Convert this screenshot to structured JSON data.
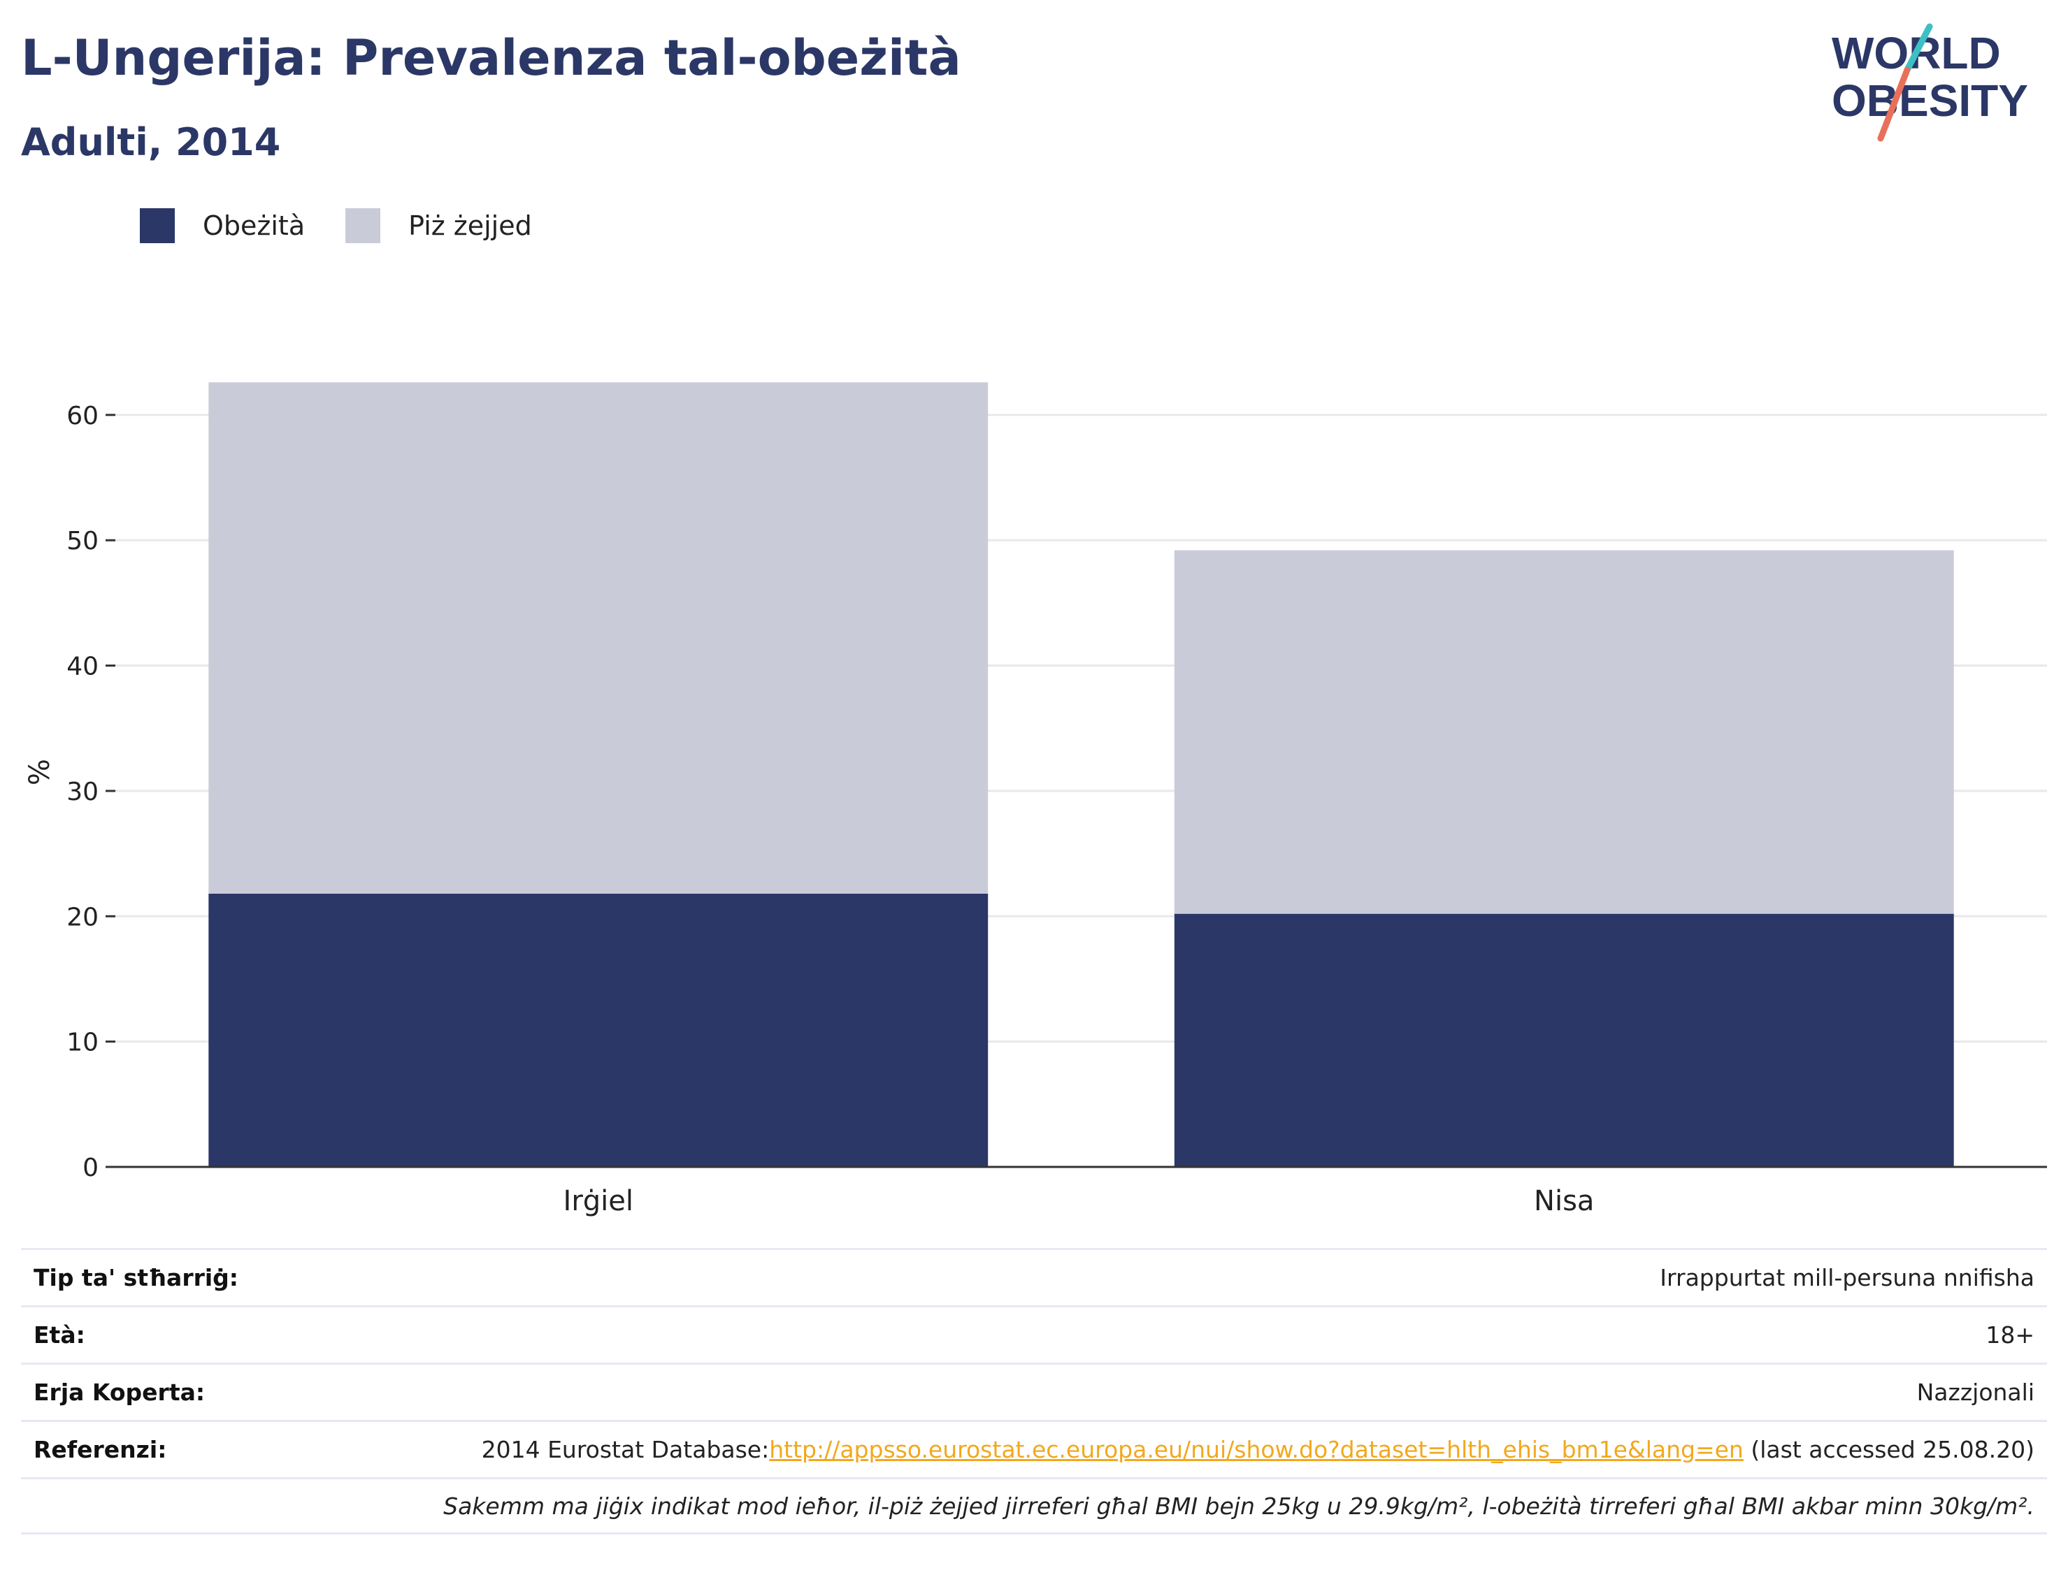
{
  "header": {
    "title": "L-Ungerija: Prevalenza tal-obeżità",
    "subtitle": "Adulti, 2014"
  },
  "logo": {
    "line1": "WORLD",
    "line2": "OBESITY",
    "colors": {
      "text": "#2b3766",
      "slash_top": "#3cc0c3",
      "slash_bottom": "#e8705a"
    }
  },
  "colors": {
    "obesity": "#2b3766",
    "overweight": "#c9ccd8",
    "gridline": "#e8e8ee",
    "axis": "#333333",
    "link": "#f2a81d"
  },
  "chart_data": {
    "type": "bar",
    "stacked": true,
    "categories": [
      "Irġiel",
      "Nisa"
    ],
    "series": [
      {
        "name": "Obeżità",
        "values": [
          21.8,
          20.2
        ]
      },
      {
        "name": "Piż żejjed",
        "values": [
          40.8,
          29.0
        ]
      }
    ],
    "totals": [
      62.6,
      49.2
    ],
    "ylabel": "%",
    "xlabel": "",
    "ylim": [
      0,
      63
    ],
    "yticks": [
      0,
      10,
      20,
      30,
      40,
      50,
      60
    ],
    "grid": true,
    "legend_position": "top-left"
  },
  "info": {
    "rows": [
      {
        "label": "Tip ta' stħarriġ:",
        "value": "Irrappurtat mill-persuna nnifisha"
      },
      {
        "label": "Età:",
        "value": "18+"
      },
      {
        "label": "Erja Koperta:",
        "value": "Nazzjonali"
      }
    ],
    "reference": {
      "label": "Referenzi:",
      "prefix": "2014 Eurostat Database:",
      "link": "http://appsso.eurostat.ec.europa.eu/nui/show.do?dataset=hlth_ehis_bm1e&lang=en",
      "suffix": " (last accessed 25.08.20)"
    },
    "note": "Sakemm ma jiġix indikat mod ieħor, il-piż żejjed jirreferi għal BMI bejn 25kg u 29.9kg/m², l-obeżità tirreferi għal BMI akbar minn 30kg/m²."
  }
}
